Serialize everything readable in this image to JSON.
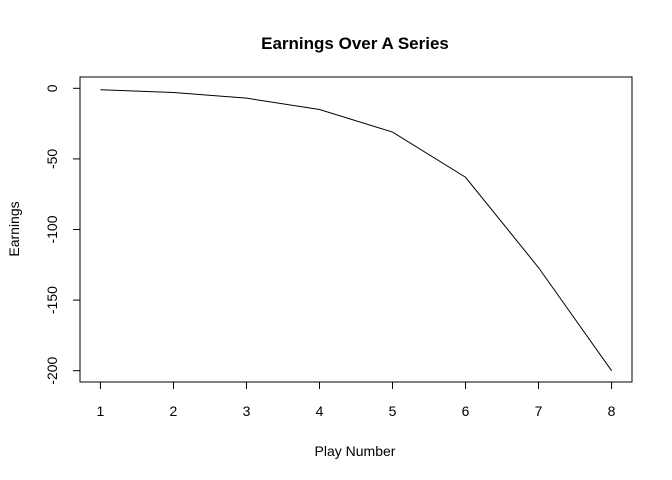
{
  "chart_data": {
    "type": "line",
    "title": "Earnings Over A Series",
    "xlabel": "Play Number",
    "ylabel": "Earnings",
    "x": [
      1,
      2,
      3,
      4,
      5,
      6,
      7,
      8
    ],
    "series": [
      {
        "values": [
          -1,
          -3,
          -7,
          -15,
          -31,
          -63,
          -127,
          -200
        ]
      }
    ],
    "xticks": [
      "1",
      "2",
      "3",
      "4",
      "5",
      "6",
      "7",
      "8"
    ],
    "yticks": [
      "0",
      "-50",
      "-100",
      "-150",
      "-200"
    ],
    "xlim": [
      0.72,
      8.28
    ],
    "ylim": [
      -208,
      8
    ],
    "line_color": "#000000",
    "grid": false,
    "legend": "none"
  }
}
